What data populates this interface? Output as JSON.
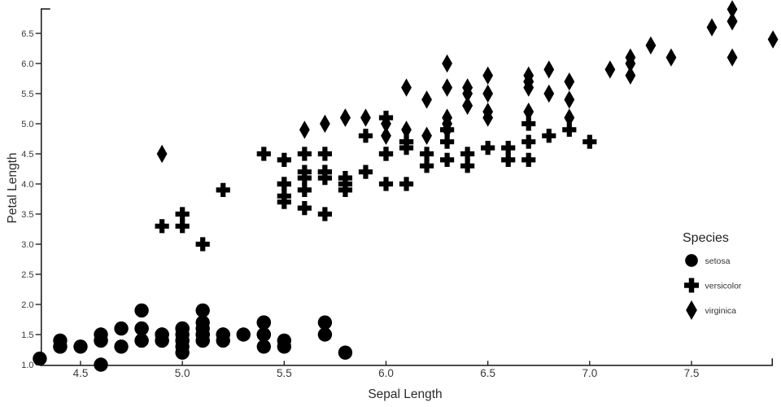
{
  "page": {
    "background": "#ffffff",
    "text_color": "#333333",
    "marker_color": "#000000"
  },
  "chart_data": {
    "type": "scatter",
    "title": "",
    "xlabel": "Sepal Length",
    "ylabel": "Petal Length",
    "x_ticks": [
      4.5,
      5.0,
      5.5,
      6.0,
      6.5,
      7.0,
      7.5
    ],
    "y_ticks": [
      1.0,
      1.5,
      2.0,
      2.5,
      3.0,
      3.5,
      4.0,
      4.5,
      5.0,
      5.5,
      6.0,
      6.5
    ],
    "xlim": [
      4.3,
      7.9
    ],
    "ylim": [
      0.9,
      6.95
    ],
    "grid": false,
    "legend": {
      "title": "Species",
      "position": "right",
      "entries": [
        {
          "label": "setosa",
          "marker": "circle"
        },
        {
          "label": "versicolor",
          "marker": "plus"
        },
        {
          "label": "virginica",
          "marker": "diamond"
        }
      ]
    },
    "series": [
      {
        "name": "setosa",
        "marker": "circle",
        "points": [
          [
            5.1,
            1.4
          ],
          [
            4.9,
            1.4
          ],
          [
            4.7,
            1.3
          ],
          [
            4.6,
            1.5
          ],
          [
            5.0,
            1.4
          ],
          [
            5.4,
            1.7
          ],
          [
            4.6,
            1.4
          ],
          [
            5.0,
            1.5
          ],
          [
            4.4,
            1.4
          ],
          [
            4.9,
            1.5
          ],
          [
            5.4,
            1.5
          ],
          [
            4.8,
            1.6
          ],
          [
            4.8,
            1.4
          ],
          [
            4.3,
            1.1
          ],
          [
            5.8,
            1.2
          ],
          [
            5.7,
            1.5
          ],
          [
            5.4,
            1.3
          ],
          [
            5.1,
            1.4
          ],
          [
            5.7,
            1.7
          ],
          [
            5.1,
            1.5
          ],
          [
            5.4,
            1.7
          ],
          [
            5.1,
            1.5
          ],
          [
            4.6,
            1.0
          ],
          [
            5.1,
            1.7
          ],
          [
            4.8,
            1.9
          ],
          [
            5.0,
            1.6
          ],
          [
            5.0,
            1.6
          ],
          [
            5.2,
            1.5
          ],
          [
            5.2,
            1.4
          ],
          [
            4.7,
            1.6
          ],
          [
            4.8,
            1.6
          ],
          [
            5.4,
            1.5
          ],
          [
            5.2,
            1.5
          ],
          [
            5.5,
            1.4
          ],
          [
            4.9,
            1.5
          ],
          [
            5.0,
            1.2
          ],
          [
            5.5,
            1.3
          ],
          [
            4.9,
            1.4
          ],
          [
            4.4,
            1.3
          ],
          [
            5.1,
            1.5
          ],
          [
            5.0,
            1.3
          ],
          [
            4.5,
            1.3
          ],
          [
            4.4,
            1.3
          ],
          [
            5.0,
            1.6
          ],
          [
            5.1,
            1.9
          ],
          [
            4.8,
            1.4
          ],
          [
            5.1,
            1.6
          ],
          [
            4.6,
            1.4
          ],
          [
            5.3,
            1.5
          ],
          [
            5.0,
            1.4
          ]
        ]
      },
      {
        "name": "versicolor",
        "marker": "plus",
        "points": [
          [
            7.0,
            4.7
          ],
          [
            6.4,
            4.5
          ],
          [
            6.9,
            4.9
          ],
          [
            5.5,
            4.0
          ],
          [
            6.5,
            4.6
          ],
          [
            5.7,
            4.5
          ],
          [
            6.3,
            4.7
          ],
          [
            4.9,
            3.3
          ],
          [
            6.6,
            4.6
          ],
          [
            5.2,
            3.9
          ],
          [
            5.0,
            3.5
          ],
          [
            5.9,
            4.2
          ],
          [
            6.0,
            4.0
          ],
          [
            6.1,
            4.7
          ],
          [
            5.6,
            3.6
          ],
          [
            6.7,
            4.4
          ],
          [
            5.6,
            4.5
          ],
          [
            5.8,
            4.1
          ],
          [
            6.2,
            4.5
          ],
          [
            5.6,
            3.9
          ],
          [
            5.9,
            4.8
          ],
          [
            6.1,
            4.0
          ],
          [
            6.3,
            4.9
          ],
          [
            6.1,
            4.7
          ],
          [
            6.4,
            4.3
          ],
          [
            6.6,
            4.4
          ],
          [
            6.8,
            4.8
          ],
          [
            6.7,
            5.0
          ],
          [
            6.0,
            4.5
          ],
          [
            5.7,
            3.5
          ],
          [
            5.5,
            3.8
          ],
          [
            5.5,
            3.7
          ],
          [
            5.8,
            3.9
          ],
          [
            6.0,
            5.1
          ],
          [
            5.4,
            4.5
          ],
          [
            6.0,
            4.5
          ],
          [
            6.7,
            4.7
          ],
          [
            6.3,
            4.4
          ],
          [
            5.6,
            4.1
          ],
          [
            5.5,
            4.0
          ],
          [
            5.5,
            4.4
          ],
          [
            6.1,
            4.6
          ],
          [
            5.8,
            4.0
          ],
          [
            5.0,
            3.3
          ],
          [
            5.6,
            4.2
          ],
          [
            5.7,
            4.2
          ],
          [
            5.7,
            4.2
          ],
          [
            6.2,
            4.3
          ],
          [
            5.1,
            3.0
          ],
          [
            5.7,
            4.1
          ]
        ]
      },
      {
        "name": "virginica",
        "marker": "diamond",
        "points": [
          [
            6.3,
            6.0
          ],
          [
            5.8,
            5.1
          ],
          [
            7.1,
            5.9
          ],
          [
            6.3,
            5.6
          ],
          [
            6.5,
            5.8
          ],
          [
            7.6,
            6.6
          ],
          [
            4.9,
            4.5
          ],
          [
            7.3,
            6.3
          ],
          [
            6.7,
            5.8
          ],
          [
            7.2,
            6.1
          ],
          [
            6.5,
            5.1
          ],
          [
            6.4,
            5.3
          ],
          [
            6.8,
            5.5
          ],
          [
            5.7,
            5.0
          ],
          [
            5.8,
            5.1
          ],
          [
            6.4,
            5.3
          ],
          [
            6.5,
            5.5
          ],
          [
            7.7,
            6.7
          ],
          [
            7.7,
            6.9
          ],
          [
            6.0,
            5.0
          ],
          [
            6.9,
            5.7
          ],
          [
            5.6,
            4.9
          ],
          [
            7.7,
            6.7
          ],
          [
            6.3,
            4.9
          ],
          [
            6.7,
            5.7
          ],
          [
            7.2,
            6.0
          ],
          [
            6.2,
            4.8
          ],
          [
            6.1,
            4.9
          ],
          [
            6.4,
            5.6
          ],
          [
            7.2,
            5.8
          ],
          [
            7.4,
            6.1
          ],
          [
            7.9,
            6.4
          ],
          [
            6.4,
            5.6
          ],
          [
            6.3,
            5.1
          ],
          [
            6.1,
            5.6
          ],
          [
            7.7,
            6.1
          ],
          [
            6.3,
            5.6
          ],
          [
            6.4,
            5.5
          ],
          [
            6.0,
            4.8
          ],
          [
            6.9,
            5.4
          ],
          [
            6.7,
            5.6
          ],
          [
            6.9,
            5.1
          ],
          [
            5.8,
            5.1
          ],
          [
            6.8,
            5.9
          ],
          [
            6.7,
            5.7
          ],
          [
            6.7,
            5.2
          ],
          [
            6.3,
            5.0
          ],
          [
            6.5,
            5.2
          ],
          [
            6.2,
            5.4
          ],
          [
            5.9,
            5.1
          ]
        ]
      }
    ]
  }
}
